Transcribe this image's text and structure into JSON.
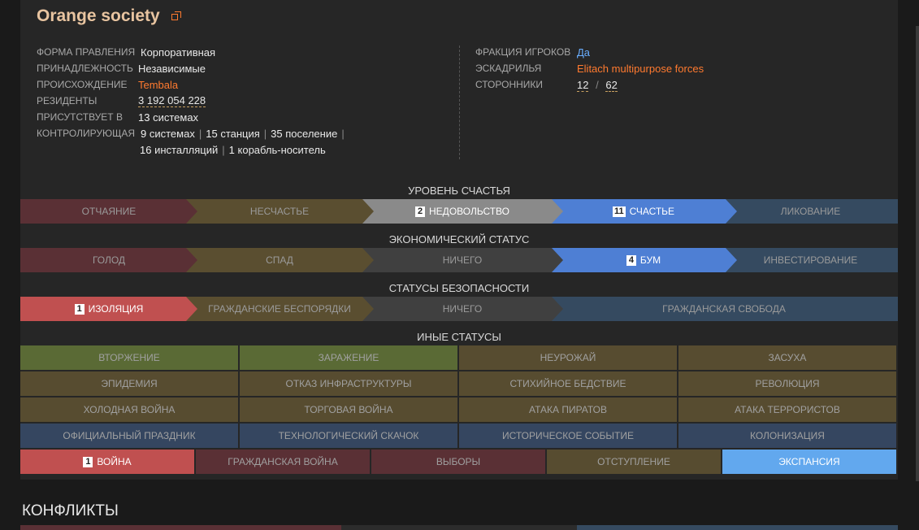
{
  "header": {
    "title": "Orange society"
  },
  "info_left": [
    {
      "label": "ФОРМА ПРАВЛЕНИЯ",
      "value": "Корпоративная"
    },
    {
      "label": "ПРИНАДЛЕЖНОСТЬ",
      "value": "Независимые"
    },
    {
      "label": "ПРОИСХОЖДЕНИЕ",
      "value": "Tembala"
    },
    {
      "label": "РЕЗИДЕНТЫ",
      "value": "3 192 054 228"
    },
    {
      "label": "ПРИСУТСТВУЕТ В",
      "value_num": "13",
      "value_text": "системах"
    },
    {
      "label": "КОНТРОЛИРУЮЩАЯ"
    }
  ],
  "controls": {
    "line1": [
      {
        "num": "9",
        "text": "системах"
      },
      {
        "num": "15",
        "text": "станция"
      },
      {
        "num": "35",
        "text": "поселение"
      }
    ],
    "line2": [
      {
        "num": "16",
        "text": "инсталляций"
      },
      {
        "num": "1",
        "text": "корабль-носитель"
      }
    ],
    "separator": "|"
  },
  "info_right": {
    "player_faction": {
      "label": "ФРАКЦИЯ ИГРОКОВ",
      "value": "Да"
    },
    "squadron": {
      "label": "ЭСКАДРИЛЬЯ",
      "value": "Elitach multipurpose forces"
    },
    "supporters": {
      "label": "СТОРОННИКИ",
      "current": "12",
      "slash": "/",
      "total": "62"
    }
  },
  "happiness": {
    "title": "УРОВЕНЬ СЧАСТЬЯ",
    "segments": [
      {
        "label": "ОТЧАЯНИЕ",
        "badge": "",
        "active": false,
        "color": "#5a3035"
      },
      {
        "label": "НЕСЧАСТЬЕ",
        "badge": "",
        "active": false,
        "color": "#5a4e30"
      },
      {
        "label": "НЕДОВОЛЬСТВО",
        "badge": "2",
        "active": true,
        "color": "#8a8a8a"
      },
      {
        "label": "СЧАСТЬЕ",
        "badge": "11",
        "active": true,
        "color": "#4e7fd4"
      },
      {
        "label": "ЛИКОВАНИЕ",
        "badge": "",
        "active": false,
        "color": "#354a60"
      }
    ]
  },
  "economy": {
    "title": "ЭКОНОМИЧЕСКИЙ СТАТУС",
    "segments": [
      {
        "label": "ГОЛОД",
        "badge": "",
        "active": false,
        "color": "#5a3035"
      },
      {
        "label": "СПАД",
        "badge": "",
        "active": false,
        "color": "#5a4e30"
      },
      {
        "label": "НИЧЕГО",
        "badge": "",
        "active": false,
        "color": "#404040"
      },
      {
        "label": "БУМ",
        "badge": "4",
        "active": true,
        "color": "#4e7fd4"
      },
      {
        "label": "ИНВЕСТИРОВАНИЕ",
        "badge": "",
        "active": false,
        "color": "#354a60"
      }
    ]
  },
  "security": {
    "title": "СТАТУСЫ БЕЗОПАСНОСТИ",
    "segments": [
      {
        "label": "ИЗОЛЯЦИЯ",
        "badge": "1",
        "active": true,
        "color": "#c05050"
      },
      {
        "label": "ГРАЖДАНСКИЕ БЕСПОРЯДКИ",
        "badge": "",
        "active": false,
        "color": "#5a4e30"
      },
      {
        "label": "НИЧЕГО",
        "badge": "",
        "active": false,
        "color": "#404040"
      },
      {
        "label": "ГРАЖДАНСКАЯ СВОБОДА",
        "badge": "",
        "active": false,
        "color": "#354a60"
      }
    ]
  },
  "other": {
    "title": "ИНЫЕ СТАТУСЫ",
    "rows": [
      [
        {
          "label": "ВТОРЖЕНИЕ",
          "color": "#5a6a35"
        },
        {
          "label": "ЗАРАЖЕНИЕ",
          "color": "#5a6a35"
        },
        {
          "label": "НЕУРОЖАЙ",
          "color": "#574c30"
        },
        {
          "label": "ЗАСУХА",
          "color": "#574c30"
        }
      ],
      [
        {
          "label": "ЭПИДЕМИЯ",
          "color": "#574c30"
        },
        {
          "label": "ОТКАЗ ИНФРАСТРУКТУРЫ",
          "color": "#574c30"
        },
        {
          "label": "СТИХИЙНОЕ БЕДСТВИЕ",
          "color": "#574c30"
        },
        {
          "label": "РЕВОЛЮЦИЯ",
          "color": "#574c30"
        }
      ],
      [
        {
          "label": "ХОЛОДНАЯ ВОЙНА",
          "color": "#574c30"
        },
        {
          "label": "ТОРГОВАЯ ВОЙНА",
          "color": "#574c30"
        },
        {
          "label": "АТАКА ПИРАТОВ",
          "color": "#574c30"
        },
        {
          "label": "АТАКА ТЕРРОРИСТОВ",
          "color": "#574c30"
        }
      ],
      [
        {
          "label": "ОФИЦИАЛЬНЫЙ ПРАЗДНИК",
          "color": "#354660"
        },
        {
          "label": "ТЕХНОЛОГИЧЕСКИЙ СКАЧОК",
          "color": "#354660"
        },
        {
          "label": "ИСТОРИЧЕСКОЕ СОБЫТИЕ",
          "color": "#354660"
        },
        {
          "label": "КОЛОНИЗАЦИЯ",
          "color": "#354660"
        }
      ]
    ],
    "last_row": [
      {
        "label": "ВОЙНА",
        "badge": "1",
        "active": true,
        "color": "#c05050"
      },
      {
        "label": "ГРАЖДАНСКАЯ ВОЙНА",
        "badge": "",
        "active": false,
        "color": "#5a3035"
      },
      {
        "label": "ВЫБОРЫ",
        "badge": "",
        "active": false,
        "color": "#5a3035"
      },
      {
        "label": "ОТСТУПЛЕНИЕ",
        "badge": "",
        "active": false,
        "color": "#574c30"
      },
      {
        "label": "ЭКСПАНСИЯ",
        "badge": "",
        "active": true,
        "color": "#62a8ee"
      }
    ]
  },
  "conflicts": {
    "title": "КОНФЛИКТЫ"
  }
}
